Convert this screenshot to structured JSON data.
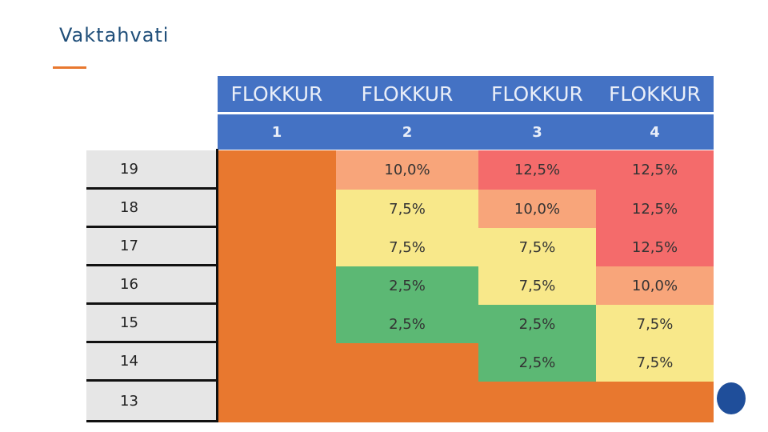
{
  "title": "Vaktahvati",
  "table": {
    "header": [
      "FLOKKUR",
      "FLOKKUR",
      "FLOKKUR",
      "FLOKKUR"
    ],
    "subheader": [
      "1",
      "2",
      "3",
      "4"
    ],
    "rows": [
      {
        "label": "19",
        "cells": [
          null,
          "10,0%",
          "12,5%",
          "12,5%"
        ],
        "colors": [
          "#e8782f",
          "#f8a57a",
          "#f46b6b",
          "#f46b6b"
        ]
      },
      {
        "label": "18",
        "cells": [
          null,
          "7,5%",
          "10,0%",
          "12,5%"
        ],
        "colors": [
          "#e8782f",
          "#f8e88a",
          "#f8a57a",
          "#f46b6b"
        ]
      },
      {
        "label": "17",
        "cells": [
          null,
          "7,5%",
          "7,5%",
          "12,5%"
        ],
        "colors": [
          "#e8782f",
          "#f8e88a",
          "#f8e88a",
          "#f46b6b"
        ]
      },
      {
        "label": "16",
        "cells": [
          null,
          "2,5%",
          "7,5%",
          "10,0%"
        ],
        "colors": [
          "#e8782f",
          "#5cb874",
          "#f8e88a",
          "#f8a57a"
        ]
      },
      {
        "label": "15",
        "cells": [
          null,
          "2,5%",
          "2,5%",
          "7,5%"
        ],
        "colors": [
          "#e8782f",
          "#5cb874",
          "#5cb874",
          "#f8e88a"
        ]
      },
      {
        "label": "14",
        "cells": [
          null,
          null,
          "2,5%",
          "7,5%"
        ],
        "colors": [
          "#e8782f",
          "#e8782f",
          "#5cb874",
          "#f8e88a"
        ]
      },
      {
        "label": "13",
        "cells": [
          null,
          null,
          null,
          null
        ],
        "colors": [
          "#e8782f",
          "#e8782f",
          "#e8782f",
          "#e8782f"
        ]
      }
    ]
  }
}
